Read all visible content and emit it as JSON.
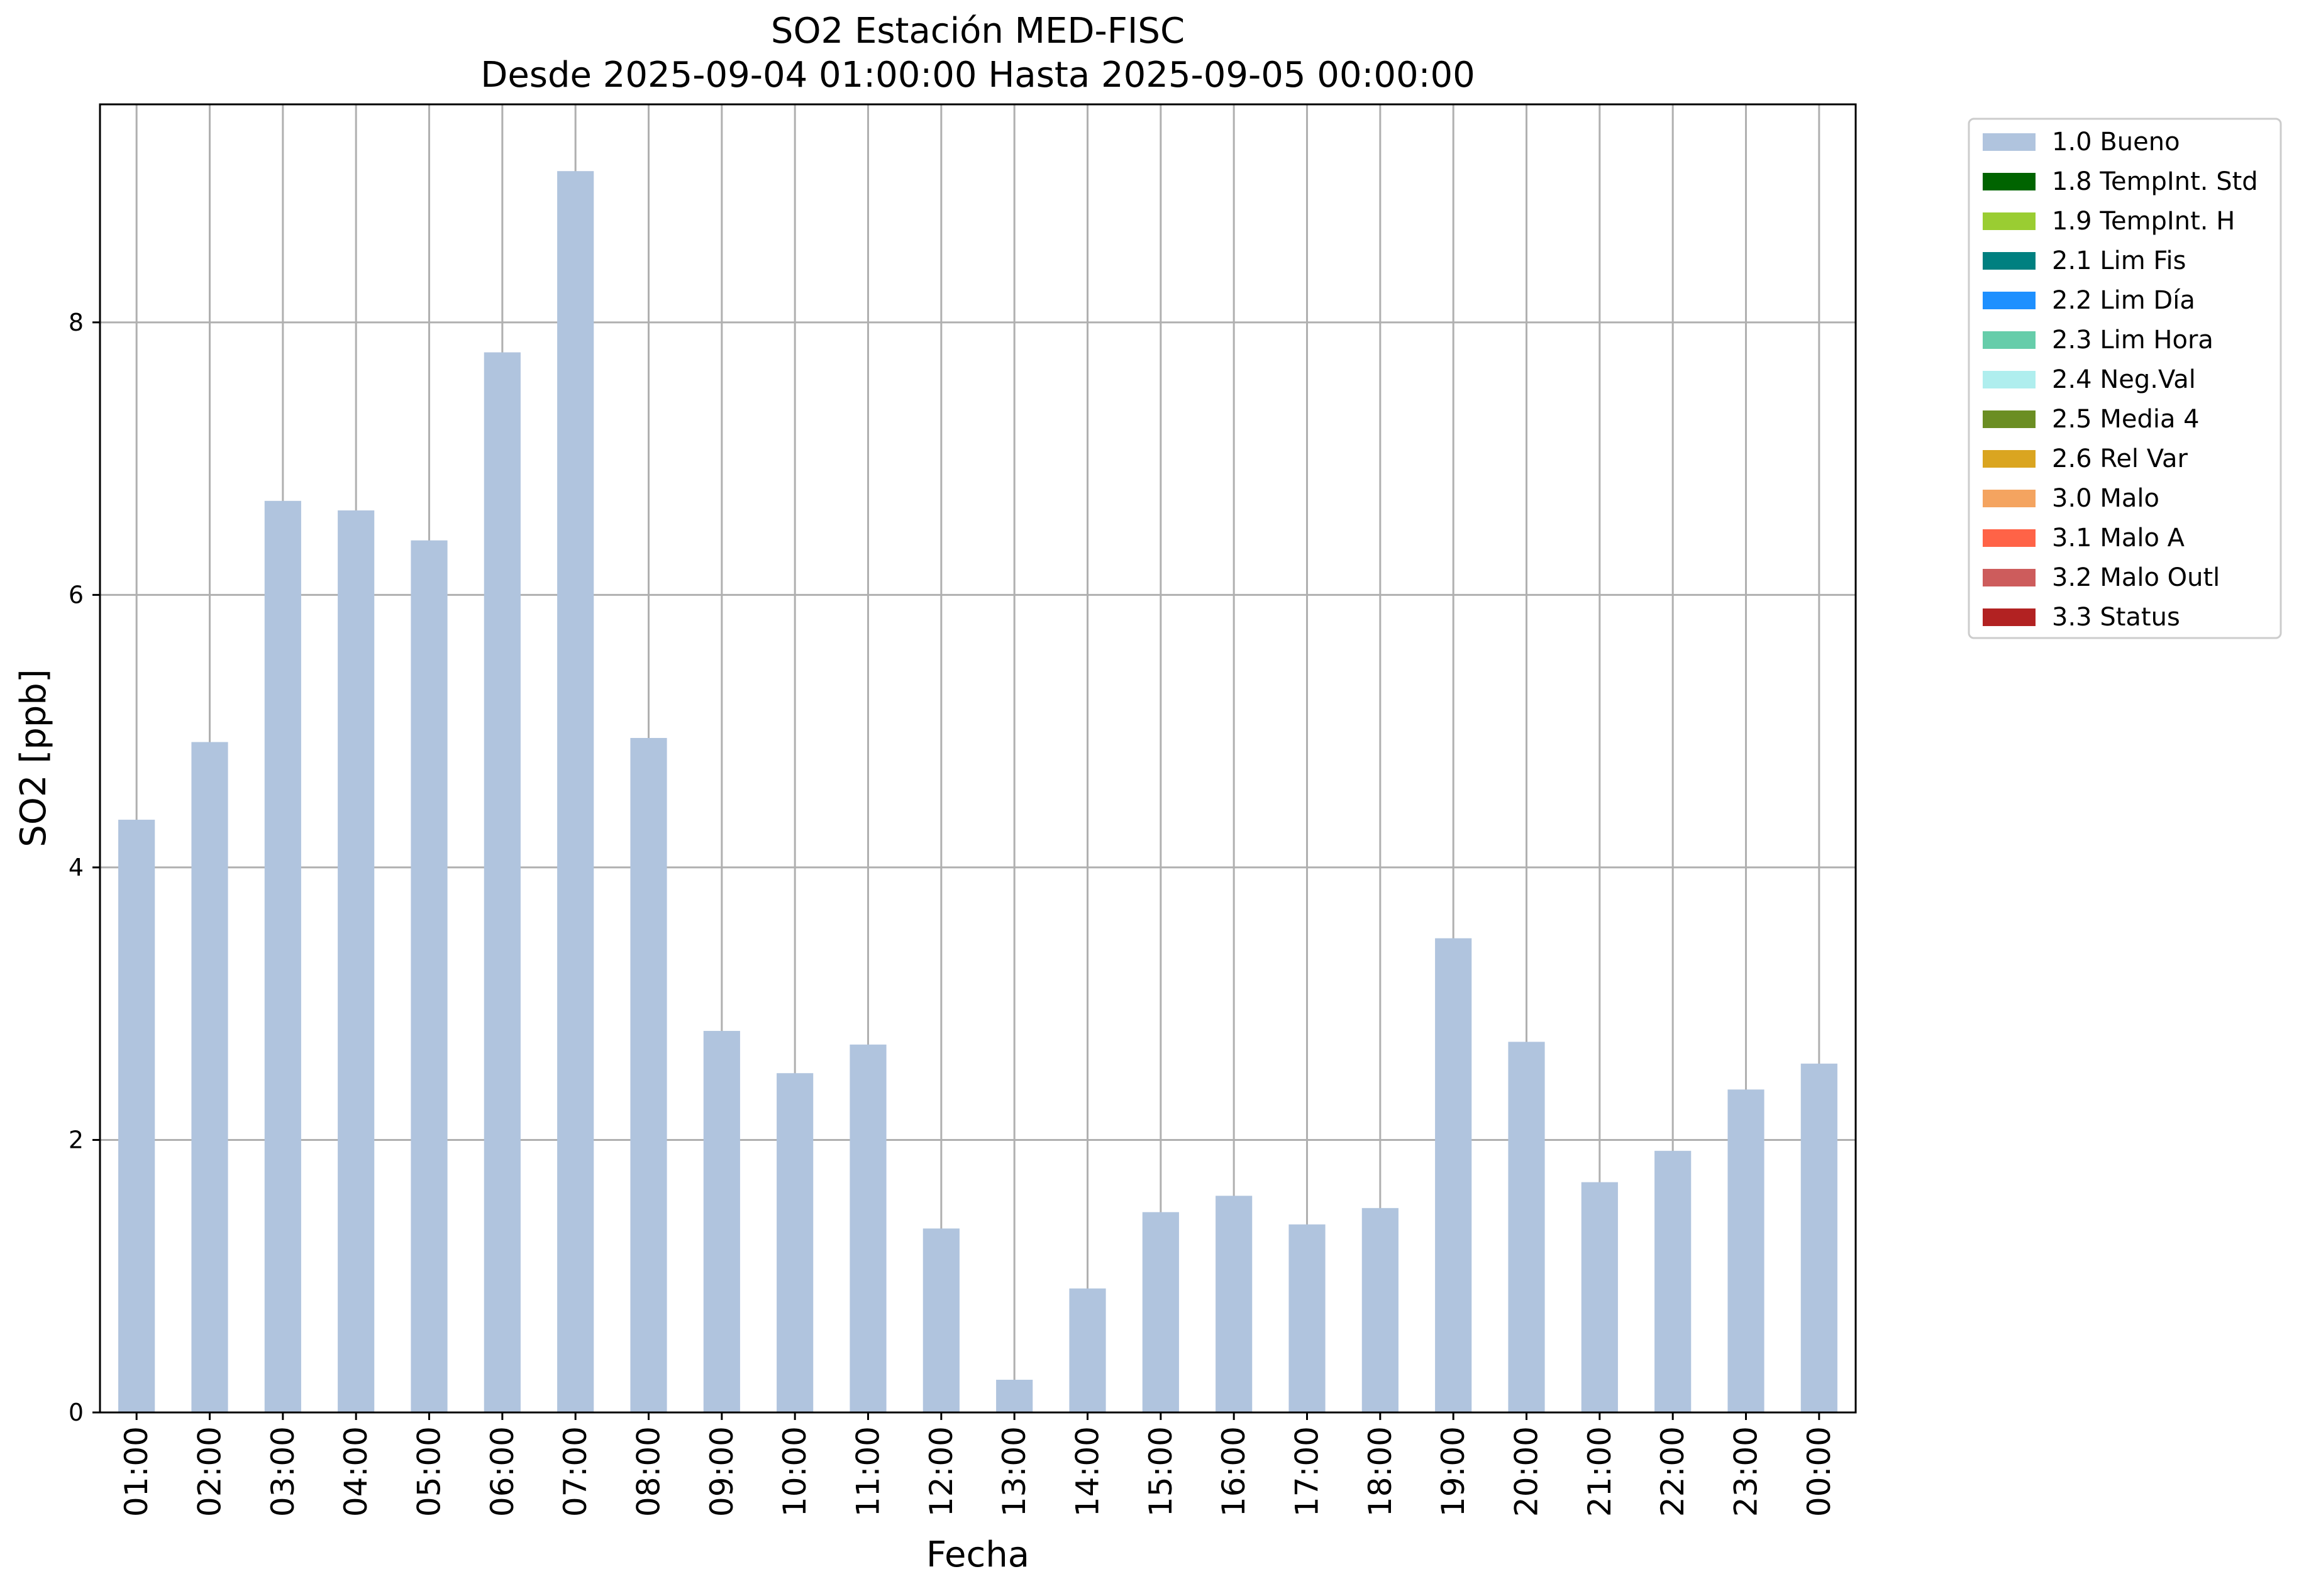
{
  "chart_data": {
    "type": "bar",
    "title": "SO2 Estación MED-FISC",
    "subtitle": "Desde 2025-09-04 01:00:00 Hasta 2025-09-05 00:00:00",
    "xlabel": "Fecha",
    "ylabel": "SO2 [ppb]",
    "ylim": [
      0,
      9.6
    ],
    "yticks": [
      0,
      2,
      4,
      6,
      8
    ],
    "grid": true,
    "legend_position": "outside-right-top",
    "categories": [
      "01:00",
      "02:00",
      "03:00",
      "04:00",
      "05:00",
      "06:00",
      "07:00",
      "08:00",
      "09:00",
      "10:00",
      "11:00",
      "12:00",
      "13:00",
      "14:00",
      "15:00",
      "16:00",
      "17:00",
      "18:00",
      "19:00",
      "20:00",
      "21:00",
      "22:00",
      "23:00",
      "00:00"
    ],
    "series": [
      {
        "name": "1.0 Bueno",
        "color": "#b0c4de",
        "values": [
          4.35,
          4.92,
          6.69,
          6.62,
          6.4,
          7.78,
          9.11,
          4.95,
          2.8,
          2.49,
          2.7,
          1.35,
          0.24,
          0.91,
          1.47,
          1.59,
          1.38,
          1.5,
          3.48,
          2.72,
          1.69,
          1.92,
          2.37,
          2.56
        ]
      }
    ],
    "legend": [
      {
        "label": "1.0 Bueno",
        "color": "#b0c4de"
      },
      {
        "label": "1.8 TempInt. Std",
        "color": "#006400"
      },
      {
        "label": "1.9 TempInt. H",
        "color": "#9acd32"
      },
      {
        "label": "2.1 Lim Fis",
        "color": "#008080"
      },
      {
        "label": "2.2 Lim Día",
        "color": "#1e90ff"
      },
      {
        "label": "2.3 Lim Hora",
        "color": "#66cdaa"
      },
      {
        "label": "2.4 Neg.Val",
        "color": "#afeeee"
      },
      {
        "label": "2.5 Media 4",
        "color": "#6b8e23"
      },
      {
        "label": "2.6 Rel Var",
        "color": "#daa520"
      },
      {
        "label": "3.0 Malo",
        "color": "#f4a460"
      },
      {
        "label": "3.1 Malo A",
        "color": "#ff6347"
      },
      {
        "label": "3.2 Malo Outl",
        "color": "#cd5c5c"
      },
      {
        "label": "3.3 Status",
        "color": "#b22222"
      }
    ],
    "grid_color": "#b0b0b0"
  }
}
